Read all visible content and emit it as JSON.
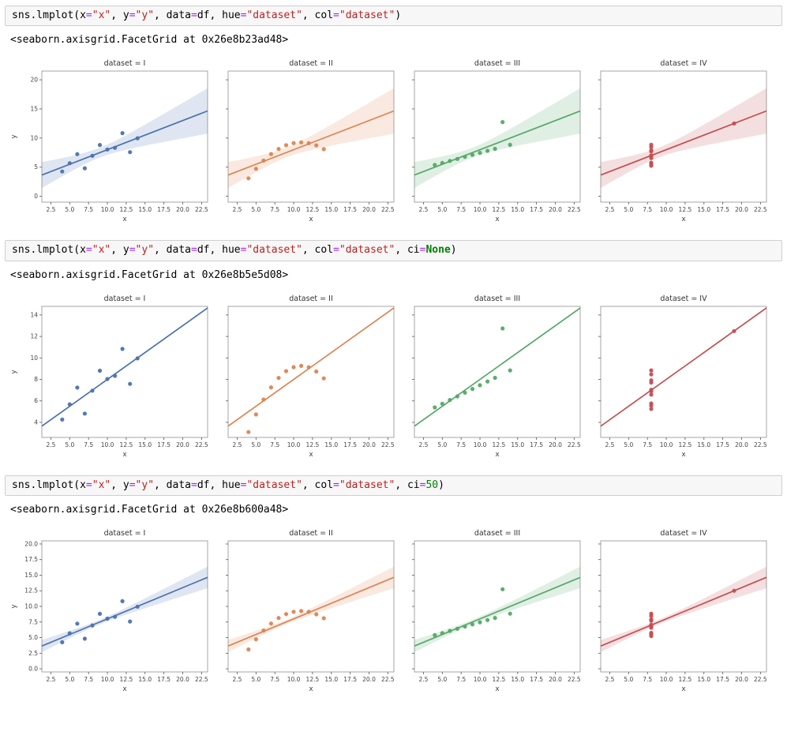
{
  "cells": [
    {
      "tokens": [
        {
          "t": "sns.lmplot(x",
          "c": "plain"
        },
        {
          "t": "=",
          "c": "op"
        },
        {
          "t": "\"x\"",
          "c": "str"
        },
        {
          "t": ", y",
          "c": "plain"
        },
        {
          "t": "=",
          "c": "op"
        },
        {
          "t": "\"y\"",
          "c": "str"
        },
        {
          "t": ", data",
          "c": "plain"
        },
        {
          "t": "=",
          "c": "op"
        },
        {
          "t": "df, hue",
          "c": "plain"
        },
        {
          "t": "=",
          "c": "op"
        },
        {
          "t": "\"dataset\"",
          "c": "str"
        },
        {
          "t": ", col",
          "c": "plain"
        },
        {
          "t": "=",
          "c": "op"
        },
        {
          "t": "\"dataset\"",
          "c": "str"
        },
        {
          "t": ")",
          "c": "plain"
        }
      ],
      "output": "<seaborn.axisgrid.FacetGrid at 0x26e8b23ad48>"
    },
    {
      "tokens": [
        {
          "t": "sns.lmplot(x",
          "c": "plain"
        },
        {
          "t": "=",
          "c": "op"
        },
        {
          "t": "\"x\"",
          "c": "str"
        },
        {
          "t": ", y",
          "c": "plain"
        },
        {
          "t": "=",
          "c": "op"
        },
        {
          "t": "\"y\"",
          "c": "str"
        },
        {
          "t": ", data",
          "c": "plain"
        },
        {
          "t": "=",
          "c": "op"
        },
        {
          "t": "df, hue",
          "c": "plain"
        },
        {
          "t": "=",
          "c": "op"
        },
        {
          "t": "\"dataset\"",
          "c": "str"
        },
        {
          "t": ", col",
          "c": "plain"
        },
        {
          "t": "=",
          "c": "op"
        },
        {
          "t": "\"dataset\"",
          "c": "str"
        },
        {
          "t": ", ci",
          "c": "plain"
        },
        {
          "t": "=",
          "c": "op"
        },
        {
          "t": "None",
          "c": "kw"
        },
        {
          "t": ")",
          "c": "plain"
        }
      ],
      "output": "<seaborn.axisgrid.FacetGrid at 0x26e8b5e5d08>"
    },
    {
      "tokens": [
        {
          "t": "sns.lmplot(x",
          "c": "plain"
        },
        {
          "t": "=",
          "c": "op"
        },
        {
          "t": "\"x\"",
          "c": "str"
        },
        {
          "t": ", y",
          "c": "plain"
        },
        {
          "t": "=",
          "c": "op"
        },
        {
          "t": "\"y\"",
          "c": "str"
        },
        {
          "t": ", data",
          "c": "plain"
        },
        {
          "t": "=",
          "c": "op"
        },
        {
          "t": "df, hue",
          "c": "plain"
        },
        {
          "t": "=",
          "c": "op"
        },
        {
          "t": "\"dataset\"",
          "c": "str"
        },
        {
          "t": ", col",
          "c": "plain"
        },
        {
          "t": "=",
          "c": "op"
        },
        {
          "t": "\"dataset\"",
          "c": "str"
        },
        {
          "t": ", ci",
          "c": "plain"
        },
        {
          "t": "=",
          "c": "op"
        },
        {
          "t": "50",
          "c": "num"
        },
        {
          "t": ")",
          "c": "plain"
        }
      ],
      "output": "<seaborn.axisgrid.FacetGrid at 0x26e8b600a48>"
    }
  ],
  "chart_data": {
    "type": "scatter",
    "shared": {
      "title_prefix": "dataset = ",
      "xlabel": "x",
      "ylabel": "y",
      "grid": false,
      "legend": "none",
      "xlim": [
        1.3,
        23.3
      ],
      "xticks": [
        2.5,
        5,
        7.5,
        10,
        12.5,
        15,
        17.5,
        20,
        22.5
      ],
      "xtick_labels": [
        "2.5",
        "5.0",
        "7.5",
        "10.0",
        "12.5",
        "15.0",
        "17.5",
        "20.0",
        "22.5"
      ],
      "datasets": [
        {
          "name": "I",
          "color": "#4c72b0",
          "x": [
            10,
            8,
            13,
            9,
            11,
            14,
            6,
            4,
            12,
            7,
            5
          ],
          "y": [
            8.04,
            6.95,
            7.58,
            8.81,
            8.33,
            9.96,
            7.24,
            4.26,
            10.84,
            4.82,
            5.68
          ]
        },
        {
          "name": "II",
          "color": "#dd8452",
          "x": [
            10,
            8,
            13,
            9,
            11,
            14,
            6,
            4,
            12,
            7,
            5
          ],
          "y": [
            9.14,
            8.14,
            8.74,
            8.77,
            9.26,
            8.1,
            6.13,
            3.1,
            9.13,
            7.26,
            4.74
          ]
        },
        {
          "name": "III",
          "color": "#55a868",
          "x": [
            10,
            8,
            13,
            9,
            11,
            14,
            6,
            4,
            12,
            7,
            5
          ],
          "y": [
            7.46,
            6.77,
            12.74,
            7.11,
            7.81,
            8.84,
            6.08,
            5.39,
            8.15,
            6.42,
            5.73
          ]
        },
        {
          "name": "IV",
          "color": "#c44e52",
          "x": [
            8,
            8,
            8,
            8,
            8,
            8,
            8,
            19,
            8,
            8,
            8
          ],
          "y": [
            6.58,
            5.76,
            7.71,
            8.84,
            8.47,
            7.04,
            5.25,
            12.5,
            5.56,
            7.91,
            6.89
          ]
        }
      ]
    },
    "figures": [
      {
        "ci": 95,
        "t_mult": 2.262,
        "ylim": [
          -1.0,
          21.5
        ],
        "ytick_vals": [
          0,
          5,
          10,
          15,
          20
        ],
        "ytick_labels": [
          "0",
          "5",
          "10",
          "15",
          "20"
        ]
      },
      {
        "ci": null,
        "t_mult": 0,
        "ylim": [
          2.6,
          14.8
        ],
        "ytick_vals": [
          4,
          6,
          8,
          10,
          12,
          14
        ],
        "ytick_labels": [
          "4",
          "6",
          "8",
          "10",
          "12",
          "14"
        ]
      },
      {
        "ci": 50,
        "t_mult": 1.0,
        "ylim": [
          -0.5,
          20.5
        ],
        "ytick_vals": [
          0,
          2.5,
          5,
          7.5,
          10,
          12.5,
          15,
          17.5,
          20
        ],
        "ytick_labels": [
          "0.0",
          "2.5",
          "5.0",
          "7.5",
          "10.0",
          "12.5",
          "15.0",
          "17.5",
          "20.0"
        ]
      }
    ]
  }
}
